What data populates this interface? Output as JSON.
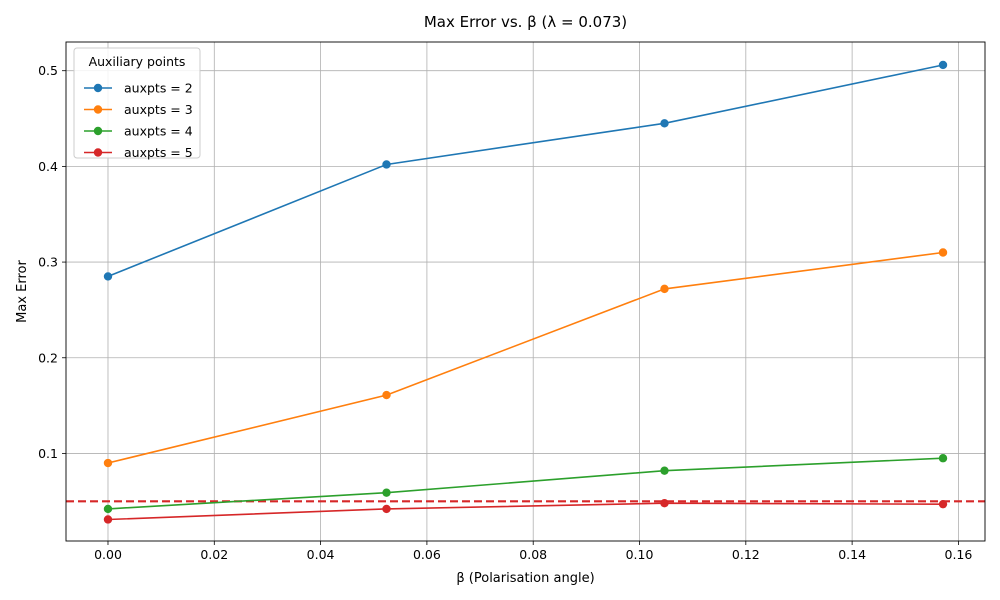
{
  "chart_data": {
    "type": "line",
    "title": "Max Error vs. β (λ = 0.073)",
    "xlabel": "β (Polarisation angle)",
    "ylabel": "Max Error",
    "x": [
      0.0,
      0.0524,
      0.1047,
      0.1571
    ],
    "xlim": [
      -0.0079,
      0.165
    ],
    "ylim": [
      0.0085,
      0.53
    ],
    "xticks": [
      0.0,
      0.02,
      0.04,
      0.06,
      0.08,
      0.1,
      0.12,
      0.14,
      0.16
    ],
    "xtick_labels": [
      "0.00",
      "0.02",
      "0.04",
      "0.06",
      "0.08",
      "0.10",
      "0.12",
      "0.14",
      "0.16"
    ],
    "yticks": [
      0.1,
      0.2,
      0.3,
      0.4,
      0.5
    ],
    "ytick_labels": [
      "0.1",
      "0.2",
      "0.3",
      "0.4",
      "0.5"
    ],
    "grid": true,
    "legend": {
      "title": "Auxiliary points",
      "placement": "top-left"
    },
    "series": [
      {
        "name": "auxpts = 2",
        "color": "#1f77b4",
        "values": [
          0.285,
          0.402,
          0.445,
          0.506
        ]
      },
      {
        "name": "auxpts = 3",
        "color": "#ff7f0e",
        "values": [
          0.09,
          0.161,
          0.272,
          0.31
        ]
      },
      {
        "name": "auxpts = 4",
        "color": "#2ca02c",
        "values": [
          0.042,
          0.059,
          0.082,
          0.095
        ]
      },
      {
        "name": "auxpts = 5",
        "color": "#d62728",
        "values": [
          0.031,
          0.042,
          0.048,
          0.047
        ]
      }
    ],
    "reference_line": {
      "y": 0.05,
      "color": "#d62728",
      "style": "dashed"
    }
  }
}
